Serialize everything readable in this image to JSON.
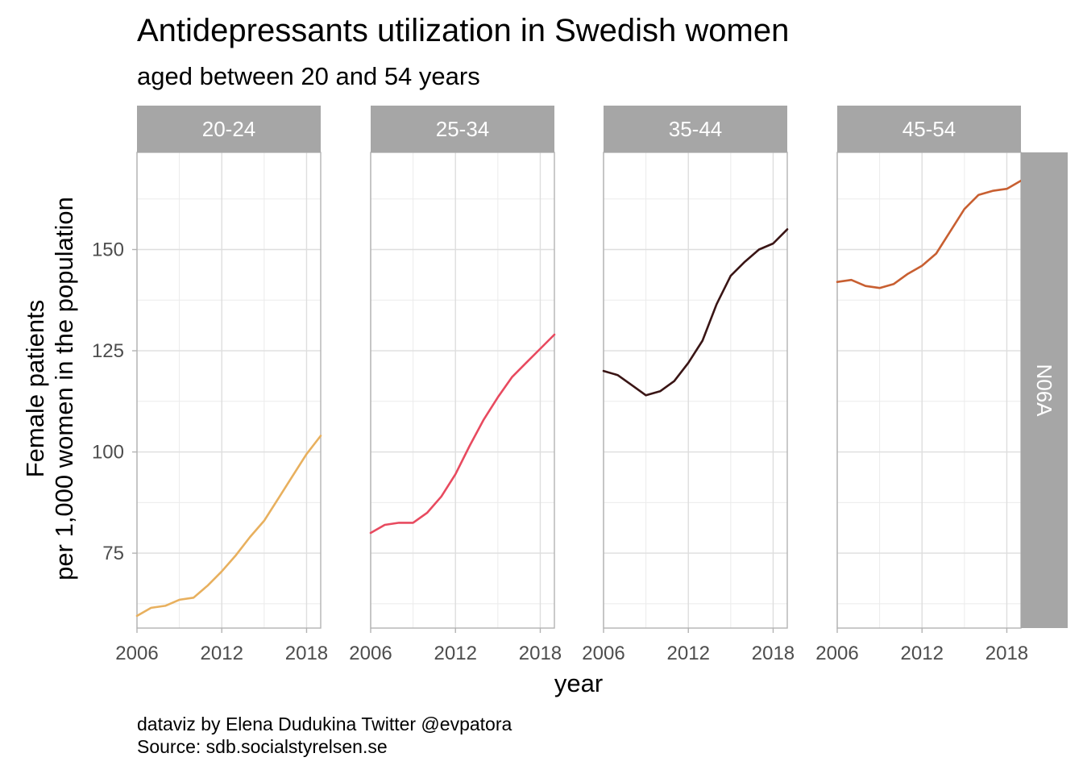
{
  "chart_data": {
    "type": "line",
    "title": "Antidepressants utilization in Swedish women",
    "subtitle": "aged between 20 and 54 years",
    "xlabel": "year",
    "ylabel_lines": [
      "Female patients",
      "per 1,000 women in the population"
    ],
    "caption_lines": [
      "dataviz by Elena Dudukina Twitter @evpatora",
      "Source: sdb.socialstyrelsen.se"
    ],
    "xlim": [
      2006,
      2019
    ],
    "ylim": [
      56.5,
      174
    ],
    "x_ticks": [
      2006,
      2012,
      2018
    ],
    "y_ticks": [
      75,
      100,
      125,
      150
    ],
    "grid": true,
    "strip_color": "#a6a6a6",
    "row_strip": "N06A",
    "series": [
      {
        "name": "20-24",
        "color": "#e8b05e",
        "x": [
          2006,
          2007,
          2008,
          2009,
          2010,
          2011,
          2012,
          2013,
          2014,
          2015,
          2016,
          2017,
          2018,
          2019
        ],
        "y": [
          59.5,
          61.5,
          62,
          63.5,
          64,
          67,
          70.5,
          74.5,
          79,
          83,
          88.5,
          94,
          99.5,
          104
        ]
      },
      {
        "name": "25-34",
        "color": "#e84a5f",
        "x": [
          2006,
          2007,
          2008,
          2009,
          2010,
          2011,
          2012,
          2013,
          2014,
          2015,
          2016,
          2017,
          2018,
          2019
        ],
        "y": [
          80,
          82,
          82.5,
          82.5,
          85,
          89,
          94.5,
          101.5,
          108,
          113.5,
          118.5,
          122,
          125.5,
          129
        ]
      },
      {
        "name": "35-44",
        "color": "#3a1515",
        "x": [
          2006,
          2007,
          2008,
          2009,
          2010,
          2011,
          2012,
          2013,
          2014,
          2015,
          2016,
          2017,
          2018,
          2019
        ],
        "y": [
          120,
          119,
          116.5,
          114,
          115,
          117.5,
          122,
          127.5,
          136.5,
          143.5,
          147,
          150,
          151.5,
          155
        ]
      },
      {
        "name": "45-54",
        "color": "#c85f31",
        "x": [
          2006,
          2007,
          2008,
          2009,
          2010,
          2011,
          2012,
          2013,
          2014,
          2015,
          2016,
          2017,
          2018,
          2019
        ],
        "y": [
          142,
          142.5,
          141,
          140.5,
          141.5,
          144,
          146,
          149,
          154.5,
          160,
          163.5,
          164.5,
          165,
          167
        ]
      }
    ]
  }
}
